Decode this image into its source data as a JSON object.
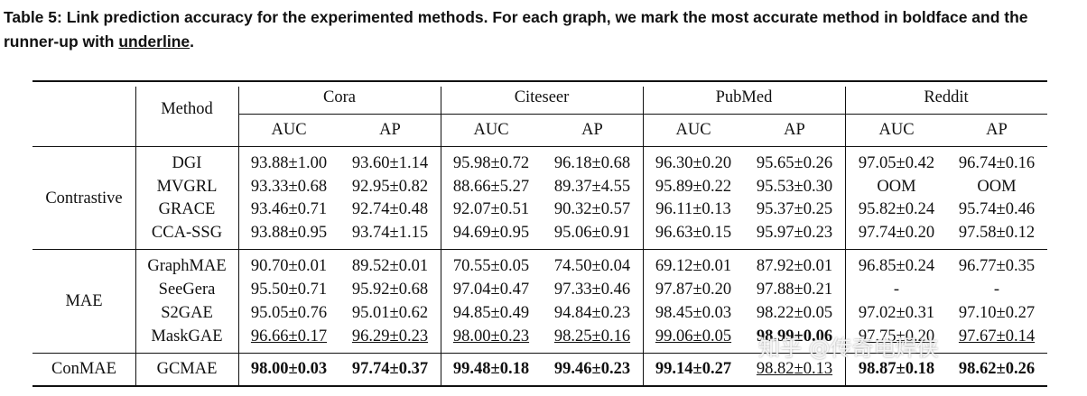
{
  "caption": {
    "prefix": "Table 5: Link prediction accuracy for the experimented methods. For each graph, we mark the most accurate method in boldface and the runner-up with ",
    "underlined_word": "underline",
    "suffix": "."
  },
  "header": {
    "method": "Method",
    "datasets": [
      "Cora",
      "Citeseer",
      "PubMed",
      "Reddit"
    ],
    "metrics": [
      "AUC",
      "AP",
      "AUC",
      "AP",
      "AUC",
      "AP",
      "AUC",
      "AP"
    ]
  },
  "groups": [
    {
      "name": "Contrastive",
      "rows": [
        {
          "method": "DGI",
          "values": [
            "93.88±1.00",
            "93.60±1.14",
            "95.98±0.72",
            "96.18±0.68",
            "96.30±0.20",
            "95.65±0.26",
            "97.05±0.42",
            "96.74±0.16"
          ]
        },
        {
          "method": "MVGRL",
          "values": [
            "93.33±0.68",
            "92.95±0.82",
            "88.66±5.27",
            "89.37±4.55",
            "95.89±0.22",
            "95.53±0.30",
            "OOM",
            "OOM"
          ]
        },
        {
          "method": "GRACE",
          "values": [
            "93.46±0.71",
            "92.74±0.48",
            "92.07±0.51",
            "90.32±0.57",
            "96.11±0.13",
            "95.37±0.25",
            "95.82±0.24",
            "95.74±0.46"
          ]
        },
        {
          "method": "CCA-SSG",
          "values": [
            "93.88±0.95",
            "93.74±1.15",
            "94.69±0.95",
            "95.06±0.91",
            "96.63±0.15",
            "95.97±0.23",
            "97.74±0.20",
            "97.58±0.12"
          ]
        }
      ]
    },
    {
      "name": "MAE",
      "rows": [
        {
          "method": "GraphMAE",
          "values": [
            "90.70±0.01",
            "89.52±0.01",
            "70.55±0.05",
            "74.50±0.04",
            "69.12±0.01",
            "87.92±0.01",
            "96.85±0.24",
            "96.77±0.35"
          ]
        },
        {
          "method": "SeeGera",
          "values": [
            "95.50±0.71",
            "95.92±0.68",
            "97.04±0.47",
            "97.33±0.46",
            "97.87±0.20",
            "97.88±0.21",
            "-",
            "-"
          ]
        },
        {
          "method": "S2GAE",
          "values": [
            "95.05±0.76",
            "95.01±0.62",
            "94.85±0.49",
            "94.84±0.23",
            "98.45±0.03",
            "98.22±0.05",
            "97.02±0.31",
            "97.10±0.27"
          ]
        },
        {
          "method": "MaskGAE",
          "values": [
            "96.66±0.17",
            "96.29±0.23",
            "98.00±0.23",
            "98.25±0.16",
            "99.06±0.05",
            "98.99±0.06",
            "97.75±0.20",
            "97.67±0.14"
          ],
          "underline": [
            0,
            1,
            2,
            3,
            4,
            6,
            7
          ],
          "bold": [
            5
          ]
        }
      ]
    },
    {
      "name": "ConMAE",
      "rows": [
        {
          "method": "GCMAE",
          "values": [
            "98.00±0.03",
            "97.74±0.37",
            "99.48±0.18",
            "99.46±0.23",
            "99.14±0.27",
            "98.82±0.13",
            "98.87±0.18",
            "98.62±0.26"
          ],
          "bold": [
            0,
            1,
            2,
            3,
            4,
            6,
            7
          ],
          "underline": [
            5
          ]
        }
      ]
    }
  ],
  "watermark": "知乎 @传奇电焊侠"
}
